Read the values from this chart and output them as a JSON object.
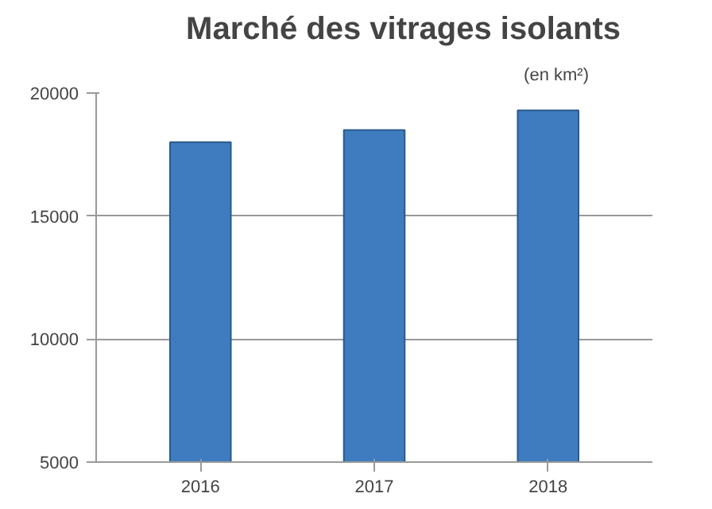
{
  "chart_data": {
    "type": "bar",
    "title": "Marché des vitrages isolants",
    "subtitle": "(en km²)",
    "categories": [
      "2016",
      "2017",
      "2018"
    ],
    "values": [
      18000,
      18500,
      19300
    ],
    "color": "#3f7cbf",
    "ylim": [
      5000,
      20000
    ],
    "yticks": [
      5000,
      10000,
      15000,
      20000
    ],
    "grid": "y"
  }
}
